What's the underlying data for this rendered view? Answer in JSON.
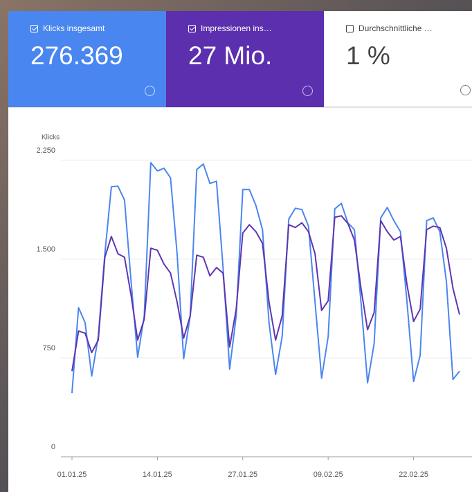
{
  "cards": [
    {
      "label": "Klicks insgesamt",
      "value": "276.369",
      "checked": true,
      "color": "#4a86f0"
    },
    {
      "label": "Impressionen ins…",
      "value": "27 Mio.",
      "checked": true,
      "color": "#5b2fae"
    },
    {
      "label": "Durchschnittliche …",
      "value": "1 %",
      "checked": false,
      "color": "#ffffff"
    }
  ],
  "chart_data": {
    "type": "line",
    "y_label": "Klicks",
    "x": [
      "2025-01-01",
      "2025-01-02",
      "2025-01-03",
      "2025-01-04",
      "2025-01-05",
      "2025-01-06",
      "2025-01-07",
      "2025-01-08",
      "2025-01-09",
      "2025-01-10",
      "2025-01-11",
      "2025-01-12",
      "2025-01-13",
      "2025-01-14",
      "2025-01-15",
      "2025-01-16",
      "2025-01-17",
      "2025-01-18",
      "2025-01-19",
      "2025-01-20",
      "2025-01-21",
      "2025-01-22",
      "2025-01-23",
      "2025-01-24",
      "2025-01-25",
      "2025-01-26",
      "2025-01-27",
      "2025-01-28",
      "2025-01-29",
      "2025-01-30",
      "2025-01-31",
      "2025-02-01",
      "2025-02-02",
      "2025-02-03",
      "2025-02-04",
      "2025-02-05",
      "2025-02-06",
      "2025-02-07",
      "2025-02-08",
      "2025-02-09",
      "2025-02-10",
      "2025-02-11",
      "2025-02-12",
      "2025-02-13",
      "2025-02-14",
      "2025-02-15",
      "2025-02-16",
      "2025-02-17",
      "2025-02-18",
      "2025-02-19",
      "2025-02-20",
      "2025-02-21",
      "2025-02-22",
      "2025-02-23",
      "2025-02-24",
      "2025-02-25",
      "2025-02-26",
      "2025-02-27",
      "2025-02-28",
      "2025-03-01"
    ],
    "series": [
      {
        "color": "#4a86f0",
        "values": [
          482,
          1132,
          1017,
          613,
          912,
          1541,
          2049,
          2054,
          1949,
          1331,
          755,
          1069,
          2232,
          2169,
          2190,
          2117,
          1541,
          744,
          1069,
          2180,
          2222,
          2075,
          2091,
          1436,
          665,
          1069,
          2028,
          2028,
          1907,
          1724,
          1017,
          624,
          912,
          1803,
          1886,
          1876,
          1750,
          1174,
          597,
          912,
          1881,
          1923,
          1776,
          1724,
          1174,
          561,
          859,
          1813,
          1892,
          1792,
          1708,
          1174,
          571,
          770,
          1792,
          1813,
          1708,
          1331,
          587,
          650
        ]
      },
      {
        "color": "#5e35b1",
        "values": [
          650,
          954,
          938,
          791,
          886,
          1514,
          1672,
          1541,
          1514,
          1226,
          886,
          1043,
          1583,
          1567,
          1462,
          1394,
          1174,
          901,
          1069,
          1530,
          1514,
          1373,
          1436,
          1394,
          833,
          1121,
          1698,
          1761,
          1708,
          1619,
          1174,
          886,
          1069,
          1761,
          1740,
          1776,
          1708,
          1541,
          1111,
          1184,
          1818,
          1829,
          1771,
          1645,
          1279,
          964,
          1095,
          1792,
          1708,
          1645,
          1672,
          1305,
          1027,
          1121,
          1724,
          1750,
          1740,
          1583,
          1279,
          1079
        ]
      }
    ],
    "xlim": [
      "2025-01-01",
      "2025-03-01"
    ],
    "xticks": [
      {
        "value": "2025-01-01",
        "label": "01.01.25"
      },
      {
        "value": "2025-01-14",
        "label": "14.01.25"
      },
      {
        "value": "2025-01-27",
        "label": "27.01.25"
      },
      {
        "value": "2025-02-09",
        "label": "09.02.25"
      },
      {
        "value": "2025-02-22",
        "label": "22.02.25"
      }
    ],
    "ylim": [
      0,
      2250
    ],
    "yticks": [
      0,
      750,
      {
        "value": 1500,
        "label": "1.500"
      },
      {
        "value": 2250,
        "label": "2.250"
      }
    ],
    "grid": true
  }
}
